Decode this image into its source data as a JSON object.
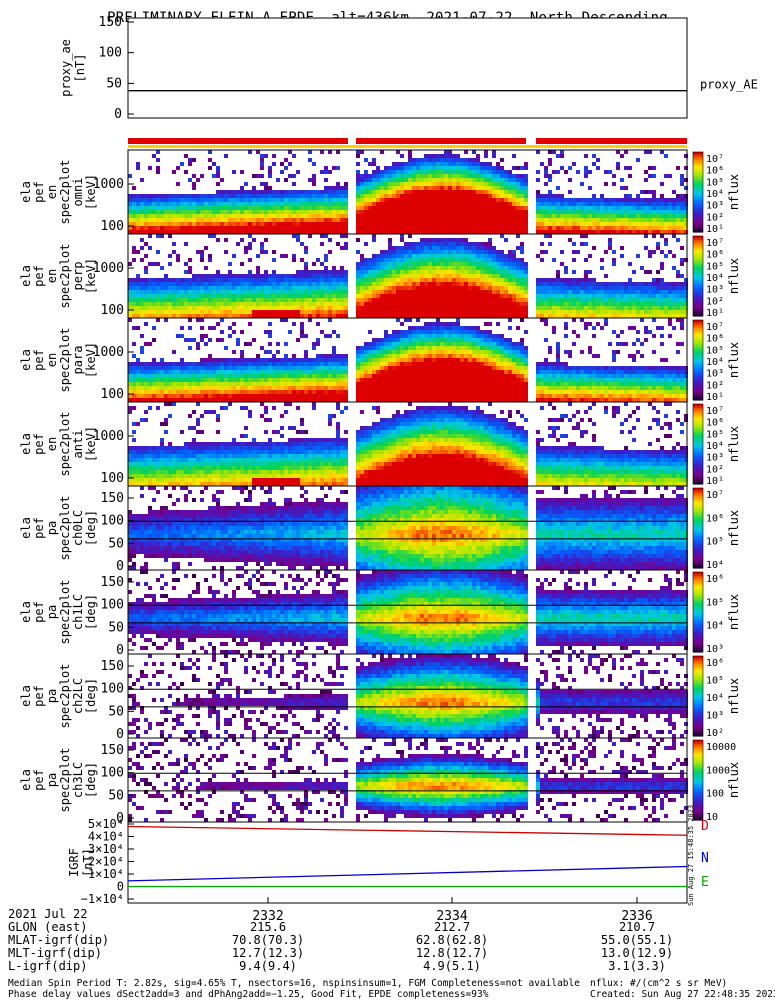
{
  "title": "PRELIMINARY ELFIN-A EPDE, alt=436km, 2021-07-22, North Descending",
  "chart_data": [
    {
      "type": "line",
      "ylabel_lines": [
        "proxy_ae",
        "[nT]"
      ],
      "yticks": [
        "150",
        "100",
        "50",
        "0"
      ],
      "ylim": [
        0,
        160
      ],
      "series": [
        {
          "name": "proxy_AE",
          "color": "#000000",
          "values": [
            38,
            38
          ]
        }
      ]
    },
    {
      "type": "heatmap",
      "ylabel_lines": [
        "ela",
        "pef",
        "en",
        "spec2plot",
        "omni",
        "[keV]"
      ],
      "yticks": [
        "1000",
        "100"
      ],
      "colorbar_ticks": [
        "10⁷",
        "10⁶",
        "10⁵",
        "10⁴",
        "10³",
        "10²",
        "10¹"
      ],
      "colorbar_label": "nflux"
    },
    {
      "type": "heatmap",
      "ylabel_lines": [
        "ela",
        "pef",
        "en",
        "spec2plot",
        "perp",
        "[keV]"
      ],
      "yticks": [
        "1000",
        "100"
      ],
      "colorbar_ticks": [
        "10⁷",
        "10⁶",
        "10⁵",
        "10⁴",
        "10³",
        "10²",
        "10¹"
      ],
      "colorbar_label": "nflux"
    },
    {
      "type": "heatmap",
      "ylabel_lines": [
        "ela",
        "pef",
        "en",
        "spec2plot",
        "para",
        "[keV]"
      ],
      "yticks": [
        "1000",
        "100"
      ],
      "colorbar_ticks": [
        "10⁷",
        "10⁶",
        "10⁵",
        "10⁴",
        "10³",
        "10²",
        "10¹"
      ],
      "colorbar_label": "nflux"
    },
    {
      "type": "heatmap",
      "ylabel_lines": [
        "ela",
        "pef",
        "en",
        "spec2plot",
        "anti",
        "[keV]"
      ],
      "yticks": [
        "1000",
        "100"
      ],
      "colorbar_ticks": [
        "10⁷",
        "10⁶",
        "10⁵",
        "10⁴",
        "10³",
        "10²",
        "10¹"
      ],
      "colorbar_label": "nflux"
    },
    {
      "type": "heatmap",
      "ylabel_lines": [
        "ela",
        "pef",
        "pa",
        "spec2plot",
        "ch0LC",
        "[deg]"
      ],
      "yticks": [
        "150",
        "100",
        "50",
        "0"
      ],
      "colorbar_ticks": [
        "10⁷",
        "10⁶",
        "10⁵",
        "10⁴"
      ],
      "colorbar_label": "nflux"
    },
    {
      "type": "heatmap",
      "ylabel_lines": [
        "ela",
        "pef",
        "pa",
        "spec2plot",
        "ch1LC",
        "[deg]"
      ],
      "yticks": [
        "150",
        "100",
        "50",
        "0"
      ],
      "colorbar_ticks": [
        "10⁶",
        "10⁵",
        "10⁴",
        "10³"
      ],
      "colorbar_label": "nflux"
    },
    {
      "type": "heatmap",
      "ylabel_lines": [
        "ela",
        "pef",
        "pa",
        "spec2plot",
        "ch2LC",
        "[deg]"
      ],
      "yticks": [
        "150",
        "100",
        "50",
        "0"
      ],
      "colorbar_ticks": [
        "10⁶",
        "10⁵",
        "10⁴",
        "10³",
        "10²"
      ],
      "colorbar_label": "nflux"
    },
    {
      "type": "heatmap",
      "ylabel_lines": [
        "ela",
        "pef",
        "pa",
        "spec2plot",
        "ch3LC",
        "[deg]"
      ],
      "yticks": [
        "150",
        "100",
        "50",
        "0"
      ],
      "colorbar_ticks": [
        "10000",
        "1000",
        "100",
        "10"
      ],
      "colorbar_label": "nflux"
    },
    {
      "type": "line",
      "ylabel_lines": [
        "IGRF",
        "[nT]"
      ],
      "yticks": [
        "5×10⁴",
        "4×10⁴",
        "3×10⁴",
        "2×10⁴",
        "1×10⁴",
        "0",
        "−1×10⁴"
      ],
      "ylim": [
        -10000,
        50000
      ],
      "series": [
        {
          "name": "D",
          "color": "#cc0000",
          "values": [
            48000,
            41000
          ]
        },
        {
          "name": "N",
          "color": "#0000cc",
          "values": [
            4500,
            16000
          ]
        },
        {
          "name": "E",
          "color": "#00aa00",
          "values": [
            0,
            0
          ]
        }
      ]
    }
  ],
  "xaxis": {
    "ticks": [
      "2332",
      "2334",
      "2336"
    ],
    "rows": [
      {
        "label": "2021 Jul 22",
        "values": [
          "",
          "",
          ""
        ]
      },
      {
        "label": "GLON (east)",
        "values": [
          "215.6",
          "212.7",
          "210.7"
        ]
      },
      {
        "label": "MLAT-igrf(dip)",
        "values": [
          "70.8(70.3)",
          "62.8(62.8)",
          "55.0(55.1)"
        ]
      },
      {
        "label": "MLT-igrf(dip)",
        "values": [
          "12.7(12.3)",
          "12.8(12.7)",
          "13.0(12.9)"
        ]
      },
      {
        "label": "L-igrf(dip)",
        "values": [
          "9.4(9.4)",
          "4.9(5.1)",
          "3.1(3.3)"
        ]
      }
    ]
  },
  "footer": {
    "line1": "Median Spin Period T: 2.82s, sig=4.65% T, nsectors=16, nspinsinsum=1, FGM Completeness=not available",
    "line2": "Phase delay values dSect2add=3 and dPhAng2add=−1.25, Good Fit, EPDE completeness=93%",
    "units": "nflux: #/(cm^2 s sr MeV)",
    "created": "Created: Sun Aug 27 22:48:35 2023",
    "stamp": "Sun Aug 27 15:48:35 2023"
  }
}
